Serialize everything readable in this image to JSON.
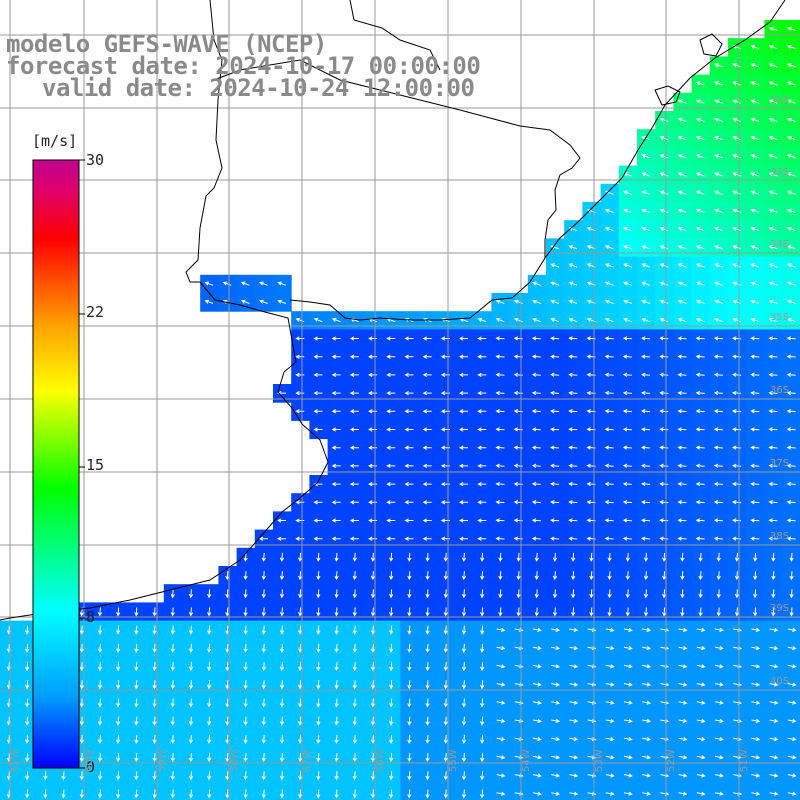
{
  "title": {
    "line1": "modelo GEFS-WAVE (NCEP)",
    "line2": "forecast date: 2024-10-17 00:00:00",
    "line3": "valid date: 2024-10-24 12:00:00"
  },
  "colorbar": {
    "unit": "[m/s]",
    "min": 0,
    "max": 30,
    "ticks": [
      "30",
      "22",
      "15",
      "8",
      "0"
    ],
    "tick_values": [
      30,
      22,
      15,
      8,
      0
    ],
    "gradient": [
      "#0000ff",
      "#00a0ff",
      "#00ffff",
      "#00ff80",
      "#00ff00",
      "#80ff00",
      "#ffff00",
      "#ffa000",
      "#ff5000",
      "#ff0000",
      "#e0006a",
      "#c00090"
    ]
  },
  "grid": {
    "lat_labels": [
      "32S",
      "33S",
      "34S",
      "35S",
      "36S",
      "37S",
      "38S",
      "39S",
      "40S"
    ],
    "lon_labels": [
      "61W",
      "60W",
      "59W",
      "58W",
      "57W",
      "56W",
      "55W",
      "54W",
      "53W",
      "52W",
      "51W"
    ]
  },
  "colors": {
    "land": "#ffffff",
    "coastline": "#000000",
    "gridline": "#9a9a9a",
    "arrow": "#ffffff",
    "title_text": "#8a8a8a"
  }
}
